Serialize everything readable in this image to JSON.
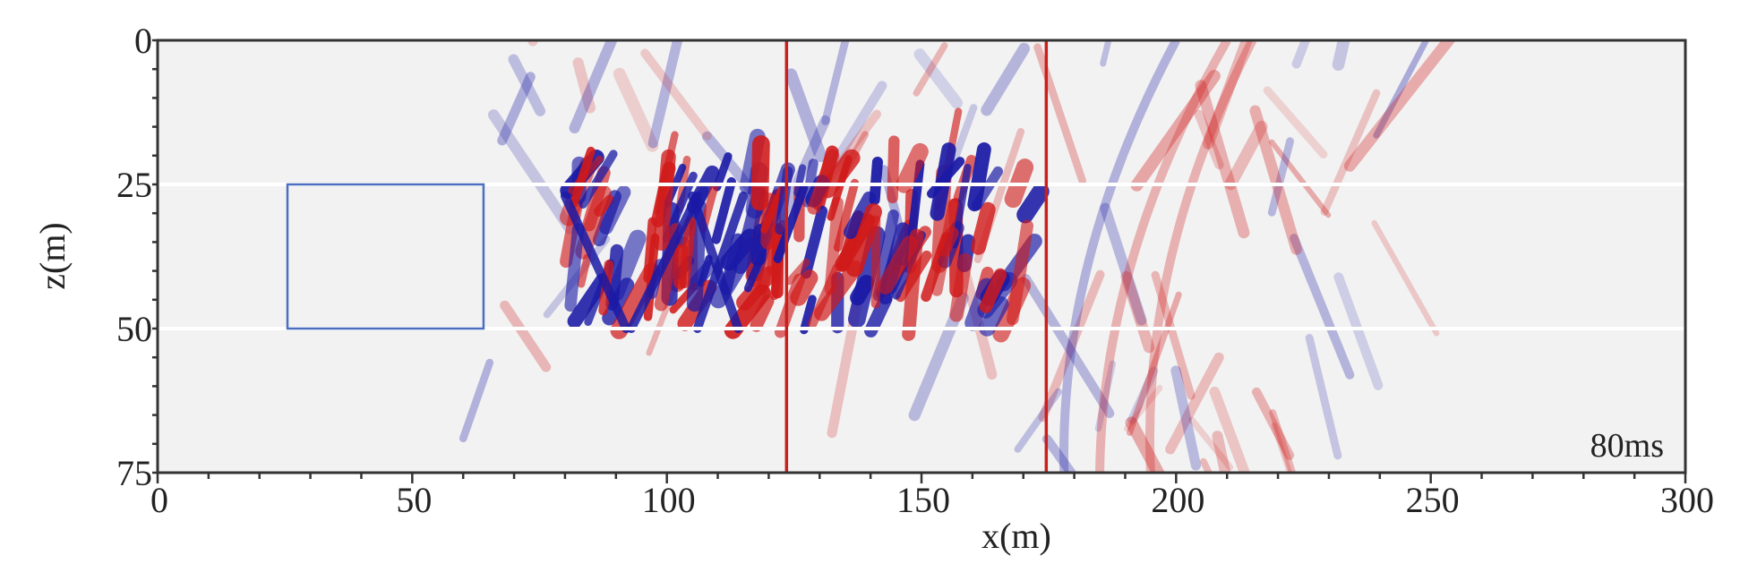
{
  "chart_data": {
    "type": "heatmap",
    "title": "",
    "xlabel": "x(m)",
    "ylabel": "z(m)",
    "xlim": [
      0,
      300
    ],
    "ylim": [
      75,
      0
    ],
    "x_ticks": [
      0,
      50,
      100,
      150,
      200,
      250,
      300
    ],
    "y_ticks": [
      0,
      25,
      50,
      75
    ],
    "x_tick_labels": [
      "0",
      "50",
      "100",
      "150",
      "200",
      "250",
      "300"
    ],
    "y_tick_labels": [
      "0",
      "25",
      "50",
      "75"
    ],
    "annotation": "80ms",
    "colormap": {
      "negative": "#1a1aa6",
      "zero": "#f2f2f2",
      "positive": "#d01a1a"
    },
    "horizontal_lines_z": [
      25,
      50
    ],
    "horizontal_line_color": "#ffffff",
    "vertical_lines_x": [
      123.5,
      174.5
    ],
    "vertical_line_color": "#c8201c",
    "rectangle": {
      "x0": 25.5,
      "x1": 64,
      "z0": 25,
      "z1": 50,
      "color": "#4a6fc0"
    },
    "grid": false,
    "legend": "none"
  }
}
